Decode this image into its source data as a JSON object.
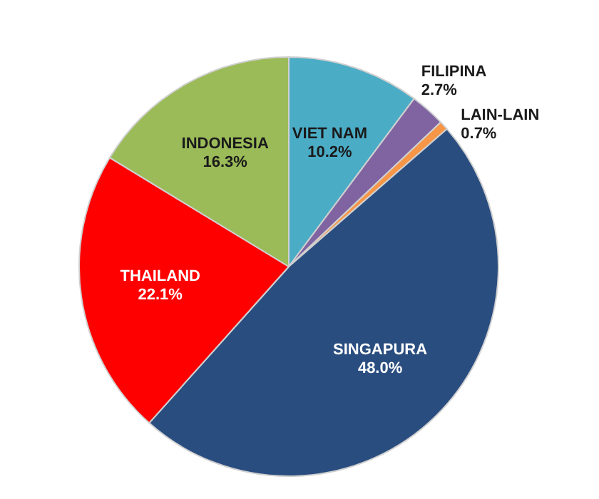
{
  "chart_data": {
    "type": "pie",
    "categories": [
      "VIET NAM",
      "FILIPINA",
      "LAIN-LAIN",
      "SINGAPURA",
      "THAILAND",
      "INDONESIA"
    ],
    "values": [
      10.2,
      2.7,
      0.7,
      48.0,
      22.1,
      16.3
    ],
    "value_labels": [
      "10.2%",
      "2.7%",
      "0.7%",
      "48.0%",
      "22.1%",
      "16.3%"
    ],
    "colors": [
      "#4bacc6",
      "#8064a2",
      "#f79646",
      "#2a4d80",
      "#ff0000",
      "#9bbb59"
    ],
    "legend": false
  }
}
